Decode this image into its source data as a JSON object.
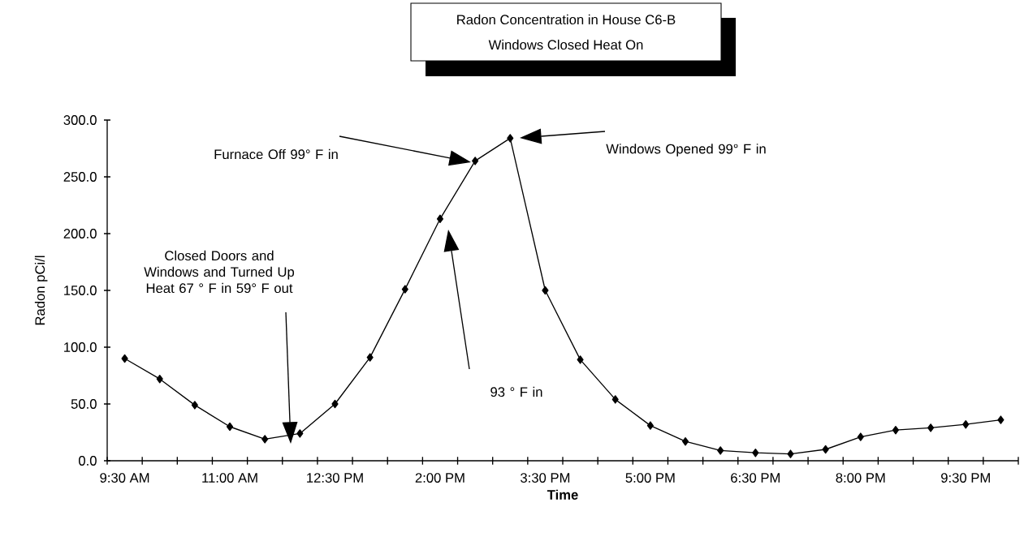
{
  "chart_data": {
    "type": "line",
    "title": "Radon Concentration in House C6-B",
    "subtitle": "Windows Closed Heat On",
    "xlabel": "Time",
    "ylabel": "Radon pCi/l",
    "categories": [
      "9:30 AM",
      null,
      null,
      "11:00 AM",
      null,
      null,
      "12:30 PM",
      null,
      null,
      "2:00 PM",
      null,
      null,
      "3:30 PM",
      null,
      null,
      "5:00 PM",
      null,
      null,
      "6:30 PM",
      null,
      null,
      "8:00 PM",
      null,
      null,
      "9:30 PM",
      null
    ],
    "values": [
      90,
      72,
      49,
      30,
      19,
      24,
      50,
      91,
      151,
      213,
      264,
      284,
      150,
      89,
      54,
      31,
      17,
      9,
      7,
      6,
      10,
      21,
      27,
      29,
      32,
      36
    ],
    "color": "#000000",
    "marker": "diamond",
    "line_style": "solid",
    "grid": false,
    "ylim": [
      0,
      300
    ],
    "yticks": [
      {
        "value": 0,
        "label": "0.0"
      },
      {
        "value": 50,
        "label": "50.0"
      },
      {
        "value": 100,
        "label": "100.0"
      },
      {
        "value": 150,
        "label": "150.0"
      },
      {
        "value": 200,
        "label": "200.0"
      },
      {
        "value": 250,
        "label": "250.0"
      },
      {
        "value": 300,
        "label": "300.0"
      }
    ],
    "annotations": [
      "Closed Doors and Windows and Turned Up Heat 67 ° F in 59° F out",
      "Furnace Off 99° F in",
      "Windows Opened 99° F in",
      "93 ° F in"
    ]
  }
}
